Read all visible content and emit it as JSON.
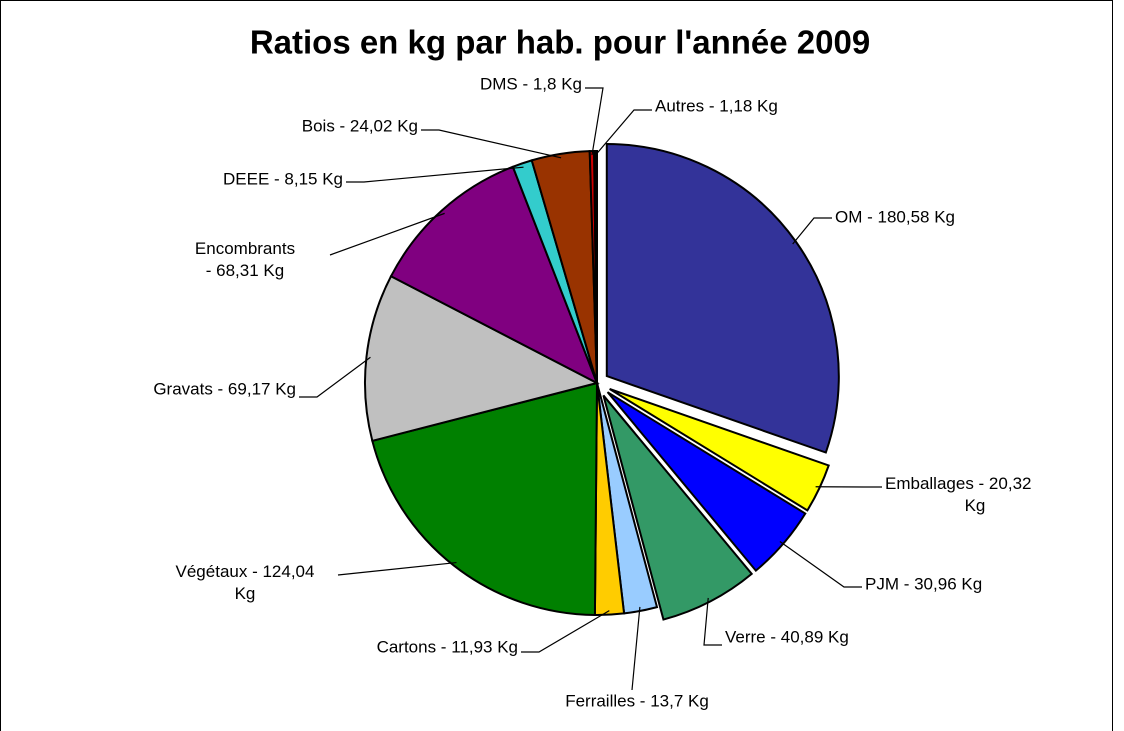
{
  "chart_data": {
    "type": "pie",
    "title": "Ratios en kg par hab. pour l'année 2009",
    "categories": [
      "OM - 180,58 Kg",
      "Emballages - 20,32 Kg",
      "PJM - 30,96 Kg",
      "Verre - 40,89 Kg",
      "Ferrailles - 13,7 Kg",
      "Cartons - 11,93 Kg",
      "Végétaux - 124,04 Kg",
      "Gravats - 69,17 Kg",
      "Encombrants - 68,31 Kg",
      "DEEE - 8,15 Kg",
      "Bois - 24,02 Kg",
      "DMS - 1,8 Kg",
      "Autres - 1,18 Kg"
    ],
    "values": [
      180.58,
      20.32,
      30.96,
      40.89,
      13.7,
      11.93,
      124.04,
      69.17,
      68.31,
      8.15,
      24.02,
      1.8,
      1.18
    ],
    "colors": [
      "#333399",
      "#ffff00",
      "#0000ff",
      "#339966",
      "#99ccff",
      "#ffcc00",
      "#008000",
      "#c0c0c0",
      "#800080",
      "#33cccc",
      "#993300",
      "#cc0000",
      "#000000"
    ]
  }
}
